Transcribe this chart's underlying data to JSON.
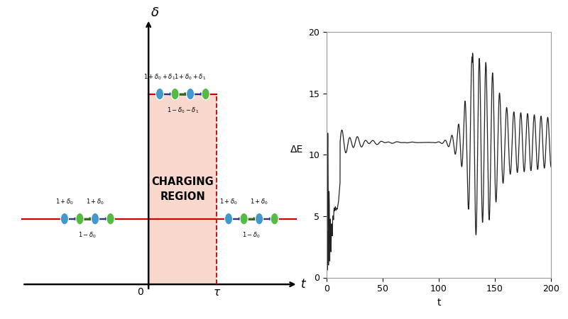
{
  "bg_color": "#ffffff",
  "left_panel": {
    "charging_region_color": "#f9d5c8",
    "red_line_color": "#cc0000",
    "blue_node_color": "#4499cc",
    "green_node_color": "#55bb44",
    "link_color_dark_blue": "#223388",
    "link_color_dark_green": "#336622"
  },
  "right_panel": {
    "ylim": [
      0,
      20
    ],
    "xlim": [
      0,
      200
    ],
    "yticks": [
      0,
      5,
      10,
      15,
      20
    ],
    "xticks": [
      0,
      50,
      100,
      150,
      200
    ],
    "xlabel": "t",
    "ylabel": "ΔE",
    "linecolor": "#222222",
    "linewidth": 0.9
  }
}
